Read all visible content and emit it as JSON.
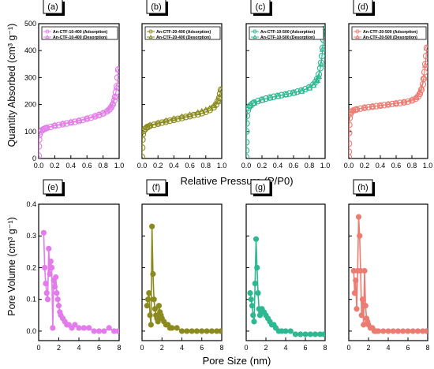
{
  "figure": {
    "top_ylabel": "Quantity Absorbed (cm³ g⁻¹)",
    "top_xlabel": "Relative Pressure (P/P0)",
    "bottom_ylabel": "Pore Volume (cm³ g⁻¹)",
    "bottom_xlabel": "Pore Size (nm)"
  },
  "chart_data": [
    {
      "panel": "(a)",
      "type": "scatter",
      "color": "#E37BEA",
      "xlim": [
        0,
        1
      ],
      "ylim": [
        0,
        500
      ],
      "xticks": [
        0.0,
        0.2,
        0.4,
        0.6,
        0.8,
        1.0
      ],
      "yticks": [
        0,
        100,
        200,
        300,
        400,
        500
      ],
      "legend": [
        "An-CTF-10-400 (Adsorption)",
        "An-CTF-10-400 (Desorption)"
      ],
      "series": [
        {
          "name": "An-CTF-10-400 (Adsorption)",
          "marker": "circle-open",
          "x": [
            0.0,
            0.002,
            0.005,
            0.01,
            0.02,
            0.04,
            0.06,
            0.08,
            0.1,
            0.15,
            0.2,
            0.25,
            0.3,
            0.35,
            0.4,
            0.45,
            0.5,
            0.55,
            0.6,
            0.65,
            0.7,
            0.75,
            0.8,
            0.85,
            0.88,
            0.9,
            0.92,
            0.94,
            0.95,
            0.96,
            0.97,
            0.98,
            0.99
          ],
          "y": [
            10,
            45,
            70,
            88,
            98,
            104,
            108,
            111,
            113,
            117,
            121,
            124,
            127,
            130,
            133,
            136,
            139,
            143,
            147,
            151,
            156,
            161,
            167,
            175,
            182,
            190,
            200,
            215,
            228,
            245,
            268,
            300,
            330
          ]
        },
        {
          "name": "An-CTF-10-400 (Desorption)",
          "marker": "triangle-open",
          "x": [
            0.99,
            0.97,
            0.95,
            0.92,
            0.9,
            0.85,
            0.8,
            0.75,
            0.7,
            0.6,
            0.5,
            0.4,
            0.3,
            0.2,
            0.1,
            0.05
          ],
          "y": [
            330,
            265,
            230,
            205,
            192,
            178,
            169,
            163,
            158,
            149,
            141,
            135,
            129,
            123,
            115,
            108
          ]
        }
      ]
    },
    {
      "panel": "(b)",
      "type": "scatter",
      "color": "#8A8A1E",
      "xlim": [
        0,
        1
      ],
      "ylim": [
        0,
        500
      ],
      "xticks": [
        0.0,
        0.2,
        0.4,
        0.6,
        0.8,
        1.0
      ],
      "yticks": [
        0,
        100,
        200,
        300,
        400,
        500
      ],
      "legend": [
        "An-CTF-20-400 (Adsorption)",
        "An-CTF-20-400 (Desorption)"
      ],
      "series": [
        {
          "name": "An-CTF-20-400 (Adsorption)",
          "marker": "circle-open",
          "x": [
            0.0,
            0.002,
            0.005,
            0.01,
            0.02,
            0.04,
            0.06,
            0.08,
            0.1,
            0.15,
            0.2,
            0.25,
            0.3,
            0.35,
            0.4,
            0.45,
            0.5,
            0.55,
            0.6,
            0.65,
            0.7,
            0.75,
            0.8,
            0.85,
            0.9,
            0.93,
            0.95,
            0.97,
            0.98,
            0.99
          ],
          "y": [
            5,
            40,
            70,
            90,
            102,
            110,
            115,
            118,
            121,
            125,
            129,
            133,
            136,
            140,
            143,
            147,
            150,
            154,
            157,
            161,
            164,
            168,
            173,
            180,
            190,
            200,
            212,
            225,
            240,
            255
          ]
        },
        {
          "name": "An-CTF-20-400 (Desorption)",
          "marker": "triangle-open",
          "x": [
            0.99,
            0.97,
            0.95,
            0.9,
            0.85,
            0.8,
            0.75,
            0.7,
            0.6,
            0.5,
            0.4,
            0.3,
            0.2,
            0.1,
            0.05
          ],
          "y": [
            255,
            228,
            212,
            196,
            186,
            180,
            175,
            170,
            162,
            155,
            148,
            140,
            132,
            124,
            116
          ]
        }
      ]
    },
    {
      "panel": "(c)",
      "type": "scatter",
      "color": "#2DB891",
      "xlim": [
        0,
        1
      ],
      "ylim": [
        0,
        500
      ],
      "xticks": [
        0.0,
        0.2,
        0.4,
        0.6,
        0.8,
        1.0
      ],
      "yticks": [
        0,
        100,
        200,
        300,
        400,
        500
      ],
      "legend": [
        "An-CTF-10-500 (Adsorption)",
        "An-CTF-10-500 (Desorption)"
      ],
      "series": [
        {
          "name": "An-CTF-10-500 (Adsorption)",
          "marker": "circle-open",
          "x": [
            0.0,
            0.001,
            0.002,
            0.004,
            0.006,
            0.01,
            0.02,
            0.03,
            0.05,
            0.08,
            0.1,
            0.15,
            0.2,
            0.25,
            0.3,
            0.35,
            0.4,
            0.45,
            0.5,
            0.55,
            0.6,
            0.65,
            0.7,
            0.75,
            0.8,
            0.85,
            0.88,
            0.9,
            0.92,
            0.94,
            0.95,
            0.96,
            0.97,
            0.98,
            0.99
          ],
          "y": [
            5,
            30,
            60,
            100,
            130,
            158,
            178,
            188,
            196,
            203,
            207,
            213,
            218,
            222,
            226,
            229,
            232,
            235,
            238,
            241,
            244,
            248,
            252,
            257,
            264,
            274,
            284,
            295,
            312,
            335,
            355,
            380,
            410,
            440,
            480
          ]
        },
        {
          "name": "An-CTF-10-500 (Desorption)",
          "marker": "triangle-open",
          "x": [
            0.99,
            0.97,
            0.95,
            0.92,
            0.9,
            0.85,
            0.8,
            0.7,
            0.6,
            0.5,
            0.4,
            0.3,
            0.2,
            0.1,
            0.05
          ],
          "y": [
            480,
            405,
            350,
            305,
            290,
            272,
            262,
            250,
            243,
            237,
            231,
            225,
            217,
            206,
            197
          ]
        }
      ]
    },
    {
      "panel": "(d)",
      "type": "scatter",
      "color": "#EC7C72",
      "xlim": [
        0,
        1
      ],
      "ylim": [
        0,
        500
      ],
      "xticks": [
        0.0,
        0.2,
        0.4,
        0.6,
        0.8,
        1.0
      ],
      "yticks": [
        0,
        100,
        200,
        300,
        400,
        500
      ],
      "legend": [
        "An-CTF-20-500 (Adsorption)",
        "An-CTF-20-500 (Desorption)"
      ],
      "series": [
        {
          "name": "An-CTF-20-500 (Adsorption)",
          "marker": "circle-open",
          "x": [
            0.0,
            0.001,
            0.002,
            0.004,
            0.006,
            0.01,
            0.02,
            0.03,
            0.05,
            0.08,
            0.1,
            0.15,
            0.2,
            0.25,
            0.3,
            0.35,
            0.4,
            0.45,
            0.5,
            0.55,
            0.6,
            0.65,
            0.7,
            0.75,
            0.8,
            0.85,
            0.88,
            0.9,
            0.92,
            0.94,
            0.95,
            0.96,
            0.97,
            0.98,
            0.99
          ],
          "y": [
            5,
            25,
            55,
            95,
            125,
            150,
            165,
            172,
            177,
            180,
            182,
            185,
            188,
            190,
            192,
            194,
            196,
            198,
            200,
            202,
            204,
            206,
            208,
            211,
            215,
            222,
            230,
            240,
            255,
            275,
            295,
            320,
            350,
            380,
            410
          ]
        },
        {
          "name": "An-CTF-20-500 (Desorption)",
          "marker": "triangle-open",
          "x": [
            0.99,
            0.97,
            0.95,
            0.92,
            0.9,
            0.85,
            0.8,
            0.7,
            0.6,
            0.5,
            0.4,
            0.3,
            0.2,
            0.1,
            0.05
          ],
          "y": [
            410,
            345,
            300,
            262,
            245,
            226,
            218,
            210,
            205,
            201,
            197,
            193,
            189,
            183,
            178
          ]
        }
      ]
    },
    {
      "panel": "(e)",
      "type": "line",
      "color": "#E37BEA",
      "xlim": [
        0,
        8
      ],
      "ylim": [
        -0.03,
        0.4
      ],
      "xticks": [
        0,
        2,
        4,
        6,
        8
      ],
      "yticks": [
        0.0,
        0.1,
        0.2,
        0.3,
        0.4
      ],
      "series": [
        {
          "marker": "circle-filled",
          "x": [
            0.5,
            0.6,
            0.7,
            0.8,
            0.9,
            1.0,
            1.1,
            1.2,
            1.3,
            1.4,
            1.5,
            1.6,
            1.7,
            1.8,
            1.9,
            2.0,
            2.1,
            2.2,
            2.4,
            2.6,
            2.8,
            3.0,
            3.3,
            3.6,
            4.0,
            4.5,
            5.0,
            5.5,
            6.0,
            6.5,
            7.0,
            7.5,
            7.9
          ],
          "y": [
            0.31,
            0.2,
            0.15,
            0.12,
            0.1,
            0.26,
            0.18,
            0.22,
            0.2,
            0.01,
            0.16,
            0.14,
            0.17,
            0.12,
            0.1,
            0.08,
            0.06,
            0.05,
            0.04,
            0.03,
            0.02,
            0.02,
            0.01,
            0.02,
            0.01,
            0.01,
            0.01,
            0.0,
            0.0,
            0.0,
            0.01,
            0.0,
            0.0
          ]
        }
      ]
    },
    {
      "panel": "(f)",
      "type": "line",
      "color": "#8A8A1E",
      "xlim": [
        0,
        8
      ],
      "ylim": [
        -0.03,
        0.4
      ],
      "xticks": [
        0,
        2,
        4,
        6,
        8
      ],
      "yticks": [
        0.0,
        0.1,
        0.2,
        0.3,
        0.4
      ],
      "series": [
        {
          "marker": "circle-filled",
          "x": [
            0.5,
            0.6,
            0.7,
            0.8,
            0.9,
            1.0,
            1.1,
            1.2,
            1.3,
            1.4,
            1.5,
            1.6,
            1.7,
            1.8,
            1.9,
            2.0,
            2.2,
            2.4,
            2.6,
            2.8,
            3.0,
            3.5,
            4.0,
            4.5,
            5.0,
            5.5,
            6.0,
            6.5,
            7.0,
            7.5,
            7.9
          ],
          "y": [
            0.08,
            0.1,
            0.12,
            0.05,
            0.02,
            0.33,
            0.18,
            0.1,
            0.07,
            0.05,
            0.04,
            0.03,
            0.08,
            0.06,
            0.05,
            0.04,
            0.03,
            0.02,
            0.02,
            0.01,
            0.01,
            0.01,
            0.0,
            0.0,
            0.0,
            0.0,
            0.0,
            0.0,
            0.0,
            0.0,
            0.0
          ]
        }
      ]
    },
    {
      "panel": "(g)",
      "type": "line",
      "color": "#2DB891",
      "xlim": [
        0,
        8
      ],
      "ylim": [
        -0.03,
        0.4
      ],
      "xticks": [
        0,
        2,
        4,
        6,
        8
      ],
      "yticks": [
        0.0,
        0.1,
        0.2,
        0.3,
        0.4
      ],
      "series": [
        {
          "marker": "circle-filled",
          "x": [
            0.4,
            0.5,
            0.6,
            0.7,
            0.8,
            0.9,
            1.0,
            1.1,
            1.2,
            1.3,
            1.4,
            1.5,
            1.6,
            1.8,
            2.0,
            2.2,
            2.4,
            2.6,
            2.8,
            3.0,
            3.3,
            3.6,
            4.0,
            4.5,
            5.0,
            5.5,
            6.0,
            6.5,
            7.0,
            7.5,
            7.9
          ],
          "y": [
            0.12,
            0.1,
            0.08,
            0.05,
            0.03,
            0.15,
            0.29,
            0.2,
            0.12,
            0.07,
            0.05,
            0.06,
            0.07,
            0.06,
            0.05,
            0.04,
            0.03,
            0.02,
            0.02,
            0.01,
            0.0,
            0.0,
            0.0,
            0.0,
            -0.01,
            -0.01,
            -0.01,
            -0.01,
            -0.01,
            -0.01,
            -0.01
          ]
        }
      ]
    },
    {
      "panel": "(h)",
      "type": "line",
      "color": "#EC7C72",
      "xlim": [
        0,
        8
      ],
      "ylim": [
        -0.03,
        0.4
      ],
      "xticks": [
        0,
        2,
        4,
        6,
        8
      ],
      "yticks": [
        0.0,
        0.1,
        0.2,
        0.3,
        0.4
      ],
      "series": [
        {
          "marker": "circle-filled",
          "x": [
            0.5,
            0.6,
            0.7,
            0.8,
            0.9,
            1.0,
            1.1,
            1.2,
            1.3,
            1.4,
            1.5,
            1.6,
            1.7,
            1.8,
            1.9,
            2.0,
            2.2,
            2.4,
            2.6,
            2.8,
            3.0,
            3.5,
            4.0,
            4.5,
            5.0,
            5.5,
            6.0,
            6.5,
            7.0,
            7.5,
            7.9
          ],
          "y": [
            0.19,
            0.12,
            0.16,
            0.07,
            0.19,
            0.36,
            0.3,
            0.19,
            0.05,
            0.1,
            0.02,
            0.19,
            0.08,
            0.04,
            0.03,
            0.02,
            0.01,
            0.01,
            0.0,
            0.0,
            0.0,
            0.0,
            0.0,
            0.0,
            0.0,
            0.0,
            0.0,
            0.0,
            0.0,
            0.0,
            0.0
          ]
        }
      ]
    }
  ]
}
